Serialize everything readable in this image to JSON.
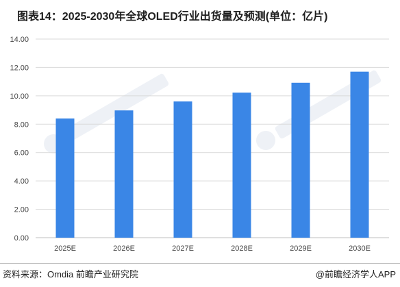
{
  "chart_data": {
    "type": "bar",
    "title": "图表14：2025-2030年全球OLED行业出货量及预测(单位：亿片)",
    "categories": [
      "2025E",
      "2026E",
      "2027E",
      "2028E",
      "2029E",
      "2030E"
    ],
    "values": [
      8.4,
      8.97,
      9.6,
      10.22,
      10.92,
      11.7
    ],
    "ylim": [
      0,
      14
    ],
    "yticks": [
      "0.00",
      "2.00",
      "4.00",
      "6.00",
      "8.00",
      "10.00",
      "12.00",
      "14.00"
    ],
    "xlabel": "",
    "ylabel": "",
    "grid": true,
    "bar_color": "#3a86e6",
    "grid_color": "#d9d9d9"
  },
  "footer": {
    "source": "资料来源：Omdia 前瞻产业研究院",
    "credit": "@前瞻经济学人APP"
  }
}
